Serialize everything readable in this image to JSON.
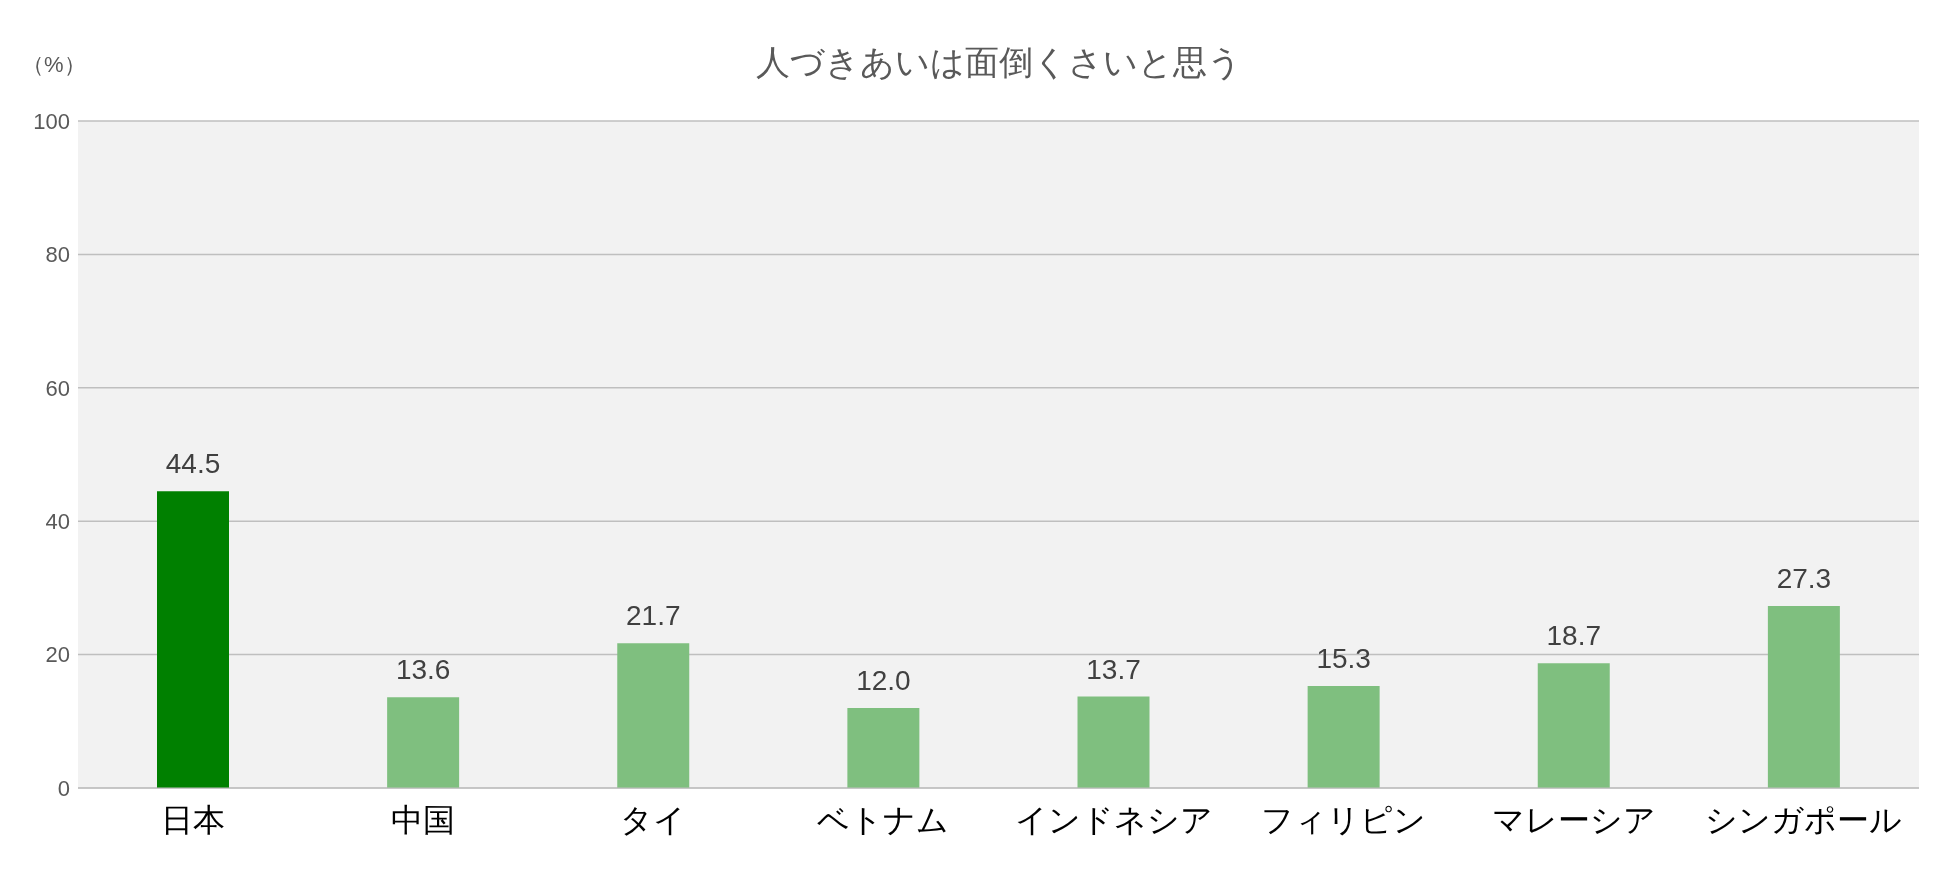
{
  "chart_data": {
    "type": "bar",
    "title": "人づきあいは面倒くさいと思う",
    "ylabel": "（%）",
    "categories": [
      "日本",
      "中国",
      "タイ",
      "ベトナム",
      "インドネシア",
      "フィリピン",
      "マレーシア",
      "シンガポール"
    ],
    "values": [
      44.5,
      13.6,
      21.7,
      12.0,
      13.7,
      15.3,
      18.7,
      27.3
    ],
    "value_labels": [
      "44.5",
      "13.6",
      "21.7",
      "12.0",
      "13.7",
      "15.3",
      "18.7",
      "27.3"
    ],
    "colors": [
      "#008000",
      "#7fbf7f",
      "#7fbf7f",
      "#7fbf7f",
      "#7fbf7f",
      "#7fbf7f",
      "#7fbf7f",
      "#7fbf7f"
    ],
    "ylim": [
      0,
      100
    ],
    "yticks": [
      0,
      20,
      40,
      60,
      80,
      100
    ],
    "grid": "y",
    "legend": false
  }
}
